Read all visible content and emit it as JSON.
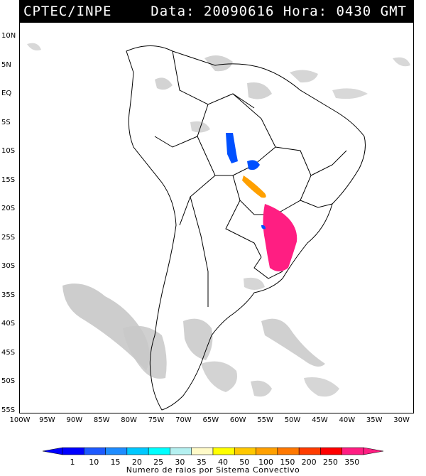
{
  "header": {
    "source": "CPTEC/INPE",
    "datetime": "Data: 20090616 Hora: 0430 GMT"
  },
  "map": {
    "lat_labels": [
      "10N",
      "5N",
      "EQ",
      "5S",
      "10S",
      "15S",
      "20S",
      "25S",
      "30S",
      "35S",
      "40S",
      "45S",
      "50S",
      "55S"
    ],
    "lon_labels": [
      "100W",
      "95W",
      "90W",
      "85W",
      "80W",
      "75W",
      "70W",
      "65W",
      "60W",
      "55W",
      "50W",
      "45W",
      "40W",
      "35W",
      "30W"
    ]
  },
  "legend": {
    "ticks": [
      "1",
      "10",
      "15",
      "20",
      "25",
      "30",
      "35",
      "40",
      "50",
      "100",
      "150",
      "200",
      "250",
      "350"
    ],
    "colors": [
      "#0000ff",
      "#1e5aff",
      "#1e8cff",
      "#00c8ff",
      "#00ffff",
      "#b4f0f0",
      "#fffac8",
      "#ffff00",
      "#ffc800",
      "#ffa000",
      "#ff7800",
      "#ff3c00",
      "#ff0000",
      "#ff1e82"
    ],
    "caption": "Numero de raios por Sistema Convectivo"
  }
}
